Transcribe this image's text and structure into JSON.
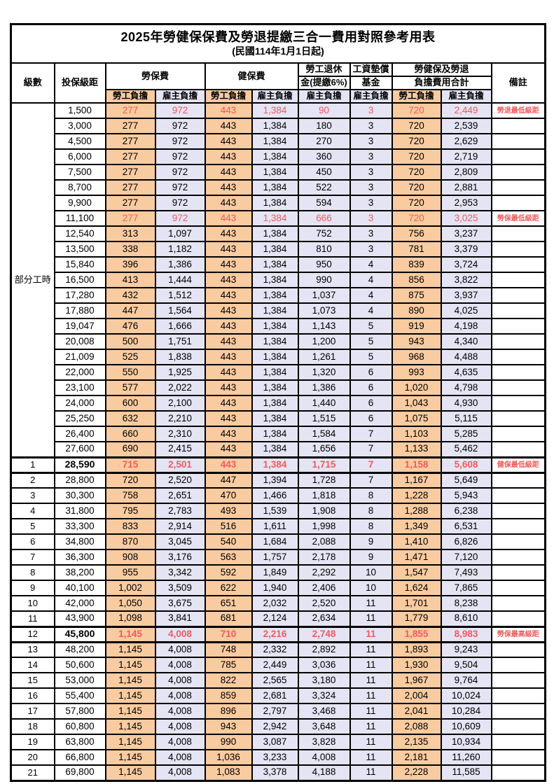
{
  "title": "2025年勞健保保費及勞退提繳三合一費用對照參考用表",
  "subtitle": "(民國114年1月1日起)",
  "header": {
    "level": "級數",
    "salary_bracket": "投保級距",
    "labor_insurance": "勞保費",
    "health_insurance": "健保費",
    "pension_line1": "勞工退休",
    "pension_line2": "金(提繳6%)",
    "wage_arrears_line1": "工資墊償",
    "wage_arrears_line2": "基金",
    "total_line1": "勞健保及勞退",
    "total_line2": "負擔費用合計",
    "remarks": "備註",
    "employee_share": "勞工負擔",
    "employer_share": "雇主負擔"
  },
  "part_time_label": "部分工時",
  "colors": {
    "employee_bg": "#F9CBA0",
    "employer_bg": "#E4E4F4",
    "highlight_text": "#F15B5B"
  },
  "rows": [
    {
      "level": "",
      "bracket": "1,500",
      "values": [
        "277",
        "972",
        "443",
        "1,384",
        "90",
        "3",
        "720",
        "2,449"
      ],
      "note": "勞退最低級距",
      "red": true,
      "strong": false
    },
    {
      "level": "",
      "bracket": "3,000",
      "values": [
        "277",
        "972",
        "443",
        "1,384",
        "180",
        "3",
        "720",
        "2,539"
      ],
      "note": "",
      "red": false,
      "strong": false
    },
    {
      "level": "",
      "bracket": "4,500",
      "values": [
        "277",
        "972",
        "443",
        "1,384",
        "270",
        "3",
        "720",
        "2,629"
      ],
      "note": "",
      "red": false,
      "strong": false
    },
    {
      "level": "",
      "bracket": "6,000",
      "values": [
        "277",
        "972",
        "443",
        "1,384",
        "360",
        "3",
        "720",
        "2,719"
      ],
      "note": "",
      "red": false,
      "strong": false
    },
    {
      "level": "",
      "bracket": "7,500",
      "values": [
        "277",
        "972",
        "443",
        "1,384",
        "450",
        "3",
        "720",
        "2,809"
      ],
      "note": "",
      "red": false,
      "strong": false
    },
    {
      "level": "",
      "bracket": "8,700",
      "values": [
        "277",
        "972",
        "443",
        "1,384",
        "522",
        "3",
        "720",
        "2,881"
      ],
      "note": "",
      "red": false,
      "strong": false
    },
    {
      "level": "",
      "bracket": "9,900",
      "values": [
        "277",
        "972",
        "443",
        "1,384",
        "594",
        "3",
        "720",
        "2,953"
      ],
      "note": "",
      "red": false,
      "strong": false
    },
    {
      "level": "",
      "bracket": "11,100",
      "values": [
        "277",
        "972",
        "443",
        "1,384",
        "666",
        "3",
        "720",
        "3,025"
      ],
      "note": "勞保最低級距",
      "red": true,
      "strong": false
    },
    {
      "level": "",
      "bracket": "12,540",
      "values": [
        "313",
        "1,097",
        "443",
        "1,384",
        "752",
        "3",
        "756",
        "3,237"
      ],
      "note": "",
      "red": false,
      "strong": false
    },
    {
      "level": "",
      "bracket": "13,500",
      "values": [
        "338",
        "1,182",
        "443",
        "1,384",
        "810",
        "3",
        "781",
        "3,379"
      ],
      "note": "",
      "red": false,
      "strong": false
    },
    {
      "level": "",
      "bracket": "15,840",
      "values": [
        "396",
        "1,386",
        "443",
        "1,384",
        "950",
        "4",
        "839",
        "3,724"
      ],
      "note": "",
      "red": false,
      "strong": false
    },
    {
      "level": "",
      "bracket": "16,500",
      "values": [
        "413",
        "1,444",
        "443",
        "1,384",
        "990",
        "4",
        "856",
        "3,822"
      ],
      "note": "",
      "red": false,
      "strong": false
    },
    {
      "level": "",
      "bracket": "17,280",
      "values": [
        "432",
        "1,512",
        "443",
        "1,384",
        "1,037",
        "4",
        "875",
        "3,937"
      ],
      "note": "",
      "red": false,
      "strong": false
    },
    {
      "level": "",
      "bracket": "17,880",
      "values": [
        "447",
        "1,564",
        "443",
        "1,384",
        "1,073",
        "4",
        "890",
        "4,025"
      ],
      "note": "",
      "red": false,
      "strong": false
    },
    {
      "level": "",
      "bracket": "19,047",
      "values": [
        "476",
        "1,666",
        "443",
        "1,384",
        "1,143",
        "5",
        "919",
        "4,198"
      ],
      "note": "",
      "red": false,
      "strong": false
    },
    {
      "level": "",
      "bracket": "20,008",
      "values": [
        "500",
        "1,751",
        "443",
        "1,384",
        "1,200",
        "5",
        "943",
        "4,340"
      ],
      "note": "",
      "red": false,
      "strong": false
    },
    {
      "level": "",
      "bracket": "21,009",
      "values": [
        "525",
        "1,838",
        "443",
        "1,384",
        "1,261",
        "5",
        "968",
        "4,488"
      ],
      "note": "",
      "red": false,
      "strong": false
    },
    {
      "level": "",
      "bracket": "22,000",
      "values": [
        "550",
        "1,925",
        "443",
        "1,384",
        "1,320",
        "6",
        "993",
        "4,635"
      ],
      "note": "",
      "red": false,
      "strong": false
    },
    {
      "level": "",
      "bracket": "23,100",
      "values": [
        "577",
        "2,022",
        "443",
        "1,384",
        "1,386",
        "6",
        "1,020",
        "4,798"
      ],
      "note": "",
      "red": false,
      "strong": false
    },
    {
      "level": "",
      "bracket": "24,000",
      "values": [
        "600",
        "2,100",
        "443",
        "1,384",
        "1,440",
        "6",
        "1,043",
        "4,930"
      ],
      "note": "",
      "red": false,
      "strong": false
    },
    {
      "level": "",
      "bracket": "25,250",
      "values": [
        "632",
        "2,210",
        "443",
        "1,384",
        "1,515",
        "6",
        "1,075",
        "5,115"
      ],
      "note": "",
      "red": false,
      "strong": false
    },
    {
      "level": "",
      "bracket": "26,400",
      "values": [
        "660",
        "2,310",
        "443",
        "1,384",
        "1,584",
        "7",
        "1,103",
        "5,285"
      ],
      "note": "",
      "red": false,
      "strong": false
    },
    {
      "level": "",
      "bracket": "27,600",
      "values": [
        "690",
        "2,415",
        "443",
        "1,384",
        "1,656",
        "7",
        "1,133",
        "5,462"
      ],
      "note": "",
      "red": false,
      "strong": false
    },
    {
      "level": "1",
      "bracket": "28,590",
      "values": [
        "715",
        "2,501",
        "443",
        "1,384",
        "1,715",
        "7",
        "1,158",
        "5,608"
      ],
      "note": "健保最低級距",
      "red": true,
      "strong": true
    },
    {
      "level": "2",
      "bracket": "28,800",
      "values": [
        "720",
        "2,520",
        "447",
        "1,394",
        "1,728",
        "7",
        "1,167",
        "5,649"
      ],
      "note": "",
      "red": false,
      "strong": false
    },
    {
      "level": "3",
      "bracket": "30,300",
      "values": [
        "758",
        "2,651",
        "470",
        "1,466",
        "1,818",
        "8",
        "1,228",
        "5,943"
      ],
      "note": "",
      "red": false,
      "strong": false
    },
    {
      "level": "4",
      "bracket": "31,800",
      "values": [
        "795",
        "2,783",
        "493",
        "1,539",
        "1,908",
        "8",
        "1,288",
        "6,238"
      ],
      "note": "",
      "red": false,
      "strong": false
    },
    {
      "level": "5",
      "bracket": "33,300",
      "values": [
        "833",
        "2,914",
        "516",
        "1,611",
        "1,998",
        "8",
        "1,349",
        "6,531"
      ],
      "note": "",
      "red": false,
      "strong": false
    },
    {
      "level": "6",
      "bracket": "34,800",
      "values": [
        "870",
        "3,045",
        "540",
        "1,684",
        "2,088",
        "9",
        "1,410",
        "6,826"
      ],
      "note": "",
      "red": false,
      "strong": false
    },
    {
      "level": "7",
      "bracket": "36,300",
      "values": [
        "908",
        "3,176",
        "563",
        "1,757",
        "2,178",
        "9",
        "1,471",
        "7,120"
      ],
      "note": "",
      "red": false,
      "strong": false
    },
    {
      "level": "8",
      "bracket": "38,200",
      "values": [
        "955",
        "3,342",
        "592",
        "1,849",
        "2,292",
        "10",
        "1,547",
        "7,493"
      ],
      "note": "",
      "red": false,
      "strong": false
    },
    {
      "level": "9",
      "bracket": "40,100",
      "values": [
        "1,002",
        "3,509",
        "622",
        "1,940",
        "2,406",
        "10",
        "1,624",
        "7,865"
      ],
      "note": "",
      "red": false,
      "strong": false
    },
    {
      "level": "10",
      "bracket": "42,000",
      "values": [
        "1,050",
        "3,675",
        "651",
        "2,032",
        "2,520",
        "11",
        "1,701",
        "8,238"
      ],
      "note": "",
      "red": false,
      "strong": false
    },
    {
      "level": "11",
      "bracket": "43,900",
      "values": [
        "1,098",
        "3,841",
        "681",
        "2,124",
        "2,634",
        "11",
        "1,779",
        "8,610"
      ],
      "note": "",
      "red": false,
      "strong": false
    },
    {
      "level": "12",
      "bracket": "45,800",
      "values": [
        "1,145",
        "4,008",
        "710",
        "2,216",
        "2,748",
        "11",
        "1,855",
        "8,983"
      ],
      "note": "勞保最高級距",
      "red": true,
      "strong": true
    },
    {
      "level": "13",
      "bracket": "48,200",
      "values": [
        "1,145",
        "4,008",
        "748",
        "2,332",
        "2,892",
        "11",
        "1,893",
        "9,243"
      ],
      "note": "",
      "red": false,
      "strong": false
    },
    {
      "level": "14",
      "bracket": "50,600",
      "values": [
        "1,145",
        "4,008",
        "785",
        "2,449",
        "3,036",
        "11",
        "1,930",
        "9,504"
      ],
      "note": "",
      "red": false,
      "strong": false
    },
    {
      "level": "15",
      "bracket": "53,000",
      "values": [
        "1,145",
        "4,008",
        "822",
        "2,565",
        "3,180",
        "11",
        "1,967",
        "9,764"
      ],
      "note": "",
      "red": false,
      "strong": false
    },
    {
      "level": "16",
      "bracket": "55,400",
      "values": [
        "1,145",
        "4,008",
        "859",
        "2,681",
        "3,324",
        "11",
        "2,004",
        "10,024"
      ],
      "note": "",
      "red": false,
      "strong": false
    },
    {
      "level": "17",
      "bracket": "57,800",
      "values": [
        "1,145",
        "4,008",
        "896",
        "2,797",
        "3,468",
        "11",
        "2,041",
        "10,284"
      ],
      "note": "",
      "red": false,
      "strong": false
    },
    {
      "level": "18",
      "bracket": "60,800",
      "values": [
        "1,145",
        "4,008",
        "943",
        "2,942",
        "3,648",
        "11",
        "2,088",
        "10,609"
      ],
      "note": "",
      "red": false,
      "strong": false
    },
    {
      "level": "19",
      "bracket": "63,800",
      "values": [
        "1,145",
        "4,008",
        "990",
        "3,087",
        "3,828",
        "11",
        "2,135",
        "10,934"
      ],
      "note": "",
      "red": false,
      "strong": false
    },
    {
      "level": "20",
      "bracket": "66,800",
      "values": [
        "1,145",
        "4,008",
        "1,036",
        "3,233",
        "4,008",
        "11",
        "2,181",
        "11,260"
      ],
      "note": "",
      "red": false,
      "strong": false
    },
    {
      "level": "21",
      "bracket": "69,800",
      "values": [
        "1,145",
        "4,008",
        "1,083",
        "3,378",
        "4,188",
        "11",
        "2,228",
        "11,585"
      ],
      "note": "",
      "red": false,
      "strong": false
    }
  ]
}
